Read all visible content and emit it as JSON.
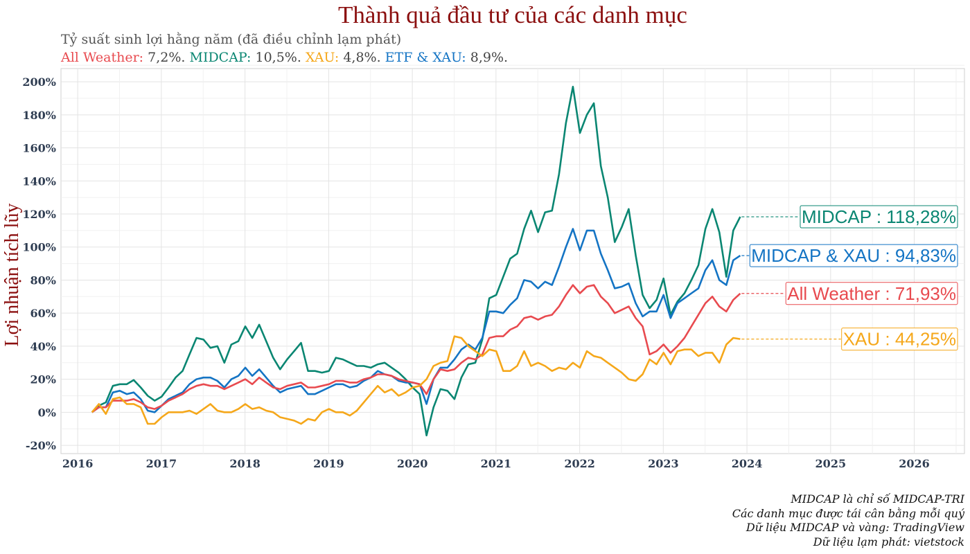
{
  "header": {
    "title": "Thành quả đầu tư của các danh mục",
    "subtitle": "Tỷ suất sinh lợi hằng năm (đã điều chỉnh lạm phát)",
    "summary": [
      {
        "name": "All Weather:",
        "value": "7,2%.",
        "color": "#e84a4f"
      },
      {
        "name": "MIDCAP:",
        "value": "10,5%.",
        "color": "#0a8672"
      },
      {
        "name": "XAU:",
        "value": "4,8%.",
        "color": "#f5a71a"
      },
      {
        "name": "ETF & XAU:",
        "value": "8,9%.",
        "color": "#1474c4"
      }
    ]
  },
  "footer": {
    "notes": [
      "MIDCAP là chỉ số MIDCAP-TRI",
      "Các danh mục được tái cân bằng mỗi quý",
      "Dữ liệu MIDCAP và vàng: TradingView",
      "Dữ liệu lạm phát: vietstock"
    ]
  },
  "chart_data": {
    "type": "line",
    "ylabel": "Lợi nhuận tích lũy",
    "xlabel": "",
    "xlim": [
      2015.8,
      2026.6
    ],
    "ylim": [
      -25,
      208
    ],
    "x_ticks": [
      2016,
      2017,
      2018,
      2019,
      2020,
      2021,
      2022,
      2023,
      2024,
      2025,
      2026
    ],
    "x_tick_labels": [
      "2016",
      "2017",
      "2018",
      "2019",
      "2020",
      "2021",
      "2022",
      "2023",
      "2024",
      "2025",
      "2026"
    ],
    "y_ticks": [
      -20,
      0,
      20,
      40,
      60,
      80,
      100,
      120,
      140,
      160,
      180,
      200
    ],
    "y_tick_labels": [
      "-20%",
      "0%",
      "20%",
      "40%",
      "60%",
      "80%",
      "100%",
      "120%",
      "140%",
      "160%",
      "180%",
      "200%"
    ],
    "grid": true,
    "x_start": 2016.17,
    "x_step": 0.08333,
    "series": [
      {
        "name": "MIDCAP",
        "color": "#0a8672",
        "end_label": "MIDCAP : 118,28%",
        "values": [
          0,
          4,
          6,
          16,
          17,
          17,
          19.5,
          15,
          10,
          7,
          9.5,
          15,
          21,
          25,
          35,
          45,
          44,
          39,
          40,
          30,
          41,
          43,
          52,
          45,
          53,
          43,
          33,
          26,
          32,
          37,
          42,
          25,
          25,
          24,
          25,
          33,
          32,
          30,
          28,
          28,
          27,
          29,
          30,
          27,
          24,
          20,
          15,
          11,
          -14,
          3,
          14,
          13,
          8,
          21,
          29,
          30,
          44,
          69,
          71,
          82,
          93,
          96,
          111,
          122,
          109,
          121,
          122,
          144,
          175,
          197,
          169,
          180,
          187,
          149,
          130,
          103,
          112,
          123,
          95,
          71,
          63,
          68,
          81,
          59,
          67,
          72,
          80,
          89,
          111,
          123,
          109,
          82,
          110,
          118.3
        ]
      },
      {
        "name": "MIDCAP & XAU",
        "color": "#1474c4",
        "end_label": "MIDCAP & XAU : 94,83%",
        "values": [
          0,
          3,
          3,
          12,
          13,
          11,
          12,
          8,
          1,
          0,
          4,
          8,
          10,
          12,
          17,
          20,
          21,
          21,
          19,
          15,
          20,
          22,
          27,
          22,
          26,
          21,
          16,
          12,
          14,
          15,
          16,
          11,
          11,
          13,
          15,
          17,
          17,
          15,
          16,
          19,
          21,
          25,
          23,
          22,
          19,
          18,
          18,
          17,
          5,
          20,
          27,
          27,
          32,
          38,
          41,
          38,
          45,
          61,
          61,
          60,
          65,
          69,
          80,
          79,
          75,
          79,
          77,
          88,
          100,
          111,
          98,
          110,
          110,
          96,
          86,
          75,
          76,
          78,
          66,
          58,
          61,
          61,
          71,
          57,
          66,
          69,
          72,
          75,
          86,
          92,
          80,
          77,
          92,
          94.8
        ]
      },
      {
        "name": "All Weather",
        "color": "#e84a4f",
        "end_label": "All Weather : 71,93%",
        "values": [
          0,
          3,
          3,
          7,
          7,
          7,
          8,
          6,
          3,
          2,
          4,
          7,
          9,
          11,
          14,
          16,
          17,
          16,
          16,
          14,
          16,
          18,
          20,
          17,
          21,
          18,
          15,
          14,
          16,
          17,
          18,
          15,
          15,
          16,
          17,
          19,
          19,
          18,
          18,
          20,
          21,
          23,
          23,
          22,
          20,
          19,
          18,
          17,
          11,
          20,
          26,
          25,
          26,
          30,
          33,
          32,
          35,
          45,
          46,
          46,
          50,
          52,
          57,
          58,
          56,
          58,
          59,
          64,
          71,
          77,
          72,
          76,
          77,
          70,
          66,
          60,
          62,
          64,
          57,
          52,
          35,
          37,
          41,
          36,
          40,
          45,
          52,
          59,
          66,
          70,
          64,
          61,
          68,
          71.9
        ]
      },
      {
        "name": "XAU",
        "color": "#f5a71a",
        "end_label": "XAU : 44,25%",
        "values": [
          0,
          5,
          -1,
          8,
          9,
          5,
          5,
          3,
          -7,
          -7,
          -3,
          0,
          0,
          0,
          1,
          -1,
          2,
          5,
          1,
          0,
          0,
          2,
          5,
          2,
          3,
          1,
          0,
          -3,
          -4,
          -5,
          -7,
          -4,
          -5,
          0,
          2,
          0,
          0,
          -2,
          1,
          6,
          11,
          16,
          12,
          14,
          10,
          12,
          15,
          16,
          20,
          28,
          30,
          31,
          46,
          45,
          40,
          37,
          34,
          38,
          37,
          25,
          25,
          28,
          37,
          28,
          30,
          28,
          25,
          27,
          26,
          30,
          27,
          37,
          34,
          33,
          30,
          27,
          24,
          20,
          19,
          23,
          32,
          29,
          36,
          29,
          37,
          38,
          38,
          34,
          36,
          36,
          30,
          41,
          45,
          44.3
        ]
      }
    ]
  }
}
